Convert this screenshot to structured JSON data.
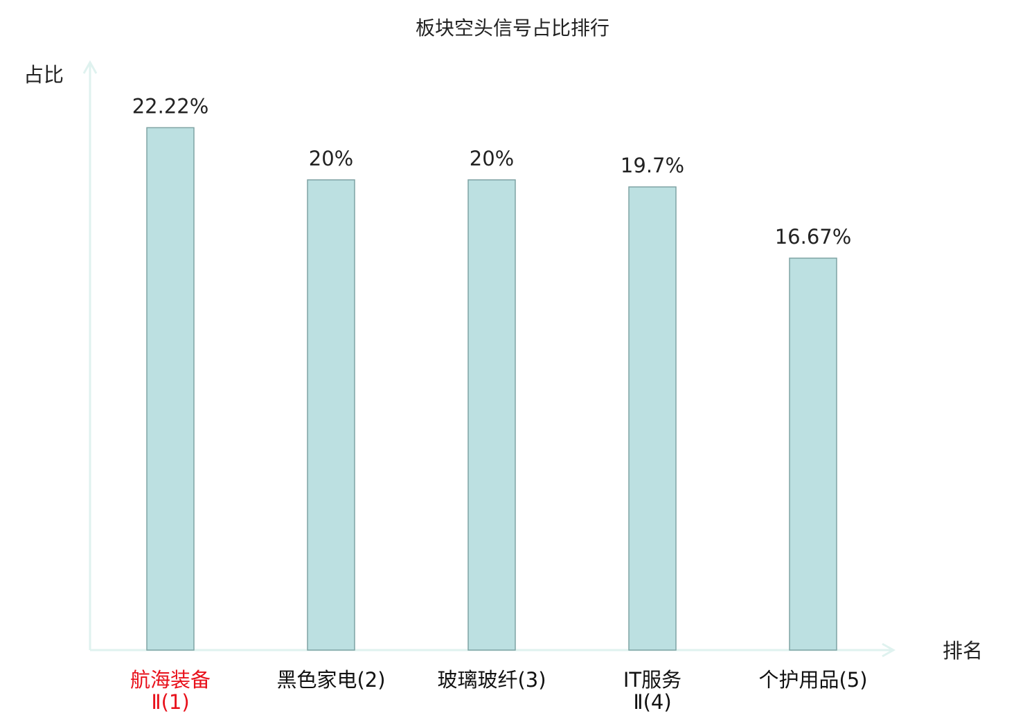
{
  "chart_data": {
    "type": "bar",
    "title": "板块空头信号占比排行",
    "y_label": "占比",
    "x_label": "排名",
    "categories": [
      "航海装备\nⅡ(1)",
      "黑色家电(2)",
      "玻璃玻纤(3)",
      "IT服务\nⅡ(4)",
      "个护用品(5)"
    ],
    "category_colors": [
      "#e8101a",
      "#111111",
      "#111111",
      "#111111",
      "#111111"
    ],
    "values": [
      22.22,
      20,
      20,
      19.7,
      16.67
    ],
    "value_labels": [
      "22.22%",
      "20%",
      "20%",
      "19.7%",
      "16.67%"
    ],
    "color": "#bce0e1",
    "edge_color": "#7fa3a4",
    "axis_color": "#dff2ef",
    "ylim": [
      0,
      25
    ]
  }
}
